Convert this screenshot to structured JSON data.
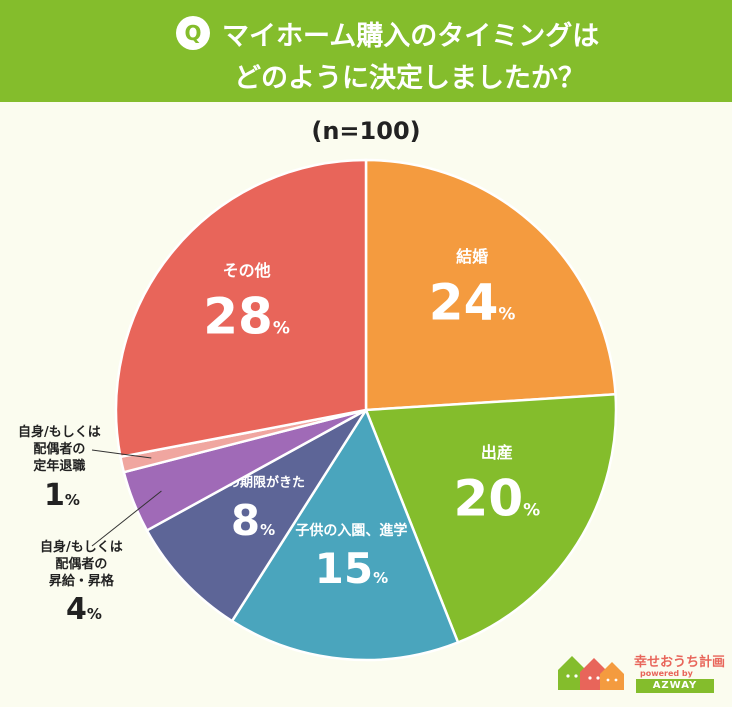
{
  "header": {
    "badge": "Q",
    "line1": "マイホーム購入のタイミングは",
    "line2": "どのように決定しましたか？"
  },
  "sample_label": "(n=100)",
  "chart_data": {
    "type": "pie",
    "title": "マイホーム購入のタイミングはどのように決定しましたか？",
    "subtitle": "(n=100)",
    "unit": "%",
    "slices": [
      {
        "label": "結婚",
        "value": 24,
        "color": "#f49b3f"
      },
      {
        "label": "出産",
        "value": 20,
        "color": "#84bd2c"
      },
      {
        "label": "子供の入園、進学",
        "value": 15,
        "color": "#4aa5bd"
      },
      {
        "label": "社宅の期限がきた",
        "value": 8,
        "color": "#5d6597"
      },
      {
        "label": "自身/もしくは配偶者の昇給・昇格",
        "value": 4,
        "color": "#a06ab7"
      },
      {
        "label": "自身/もしくは配偶者の定年退職",
        "value": 1,
        "color": "#f0a6a0"
      },
      {
        "label": "その他",
        "value": 28,
        "color": "#e8655a"
      }
    ]
  },
  "external_labels": {
    "retire": {
      "lines": [
        "自身/もしくは",
        "配偶者の",
        "定年退職"
      ],
      "value": "1",
      "unit": "%"
    },
    "promo": {
      "lines": [
        "自身/もしくは",
        "配偶者の",
        "昇給・昇格"
      ],
      "value": "4",
      "unit": "%"
    }
  },
  "logo": {
    "name": "幸せおうち計画",
    "powered": "powered by",
    "brand": "AZWAY"
  }
}
